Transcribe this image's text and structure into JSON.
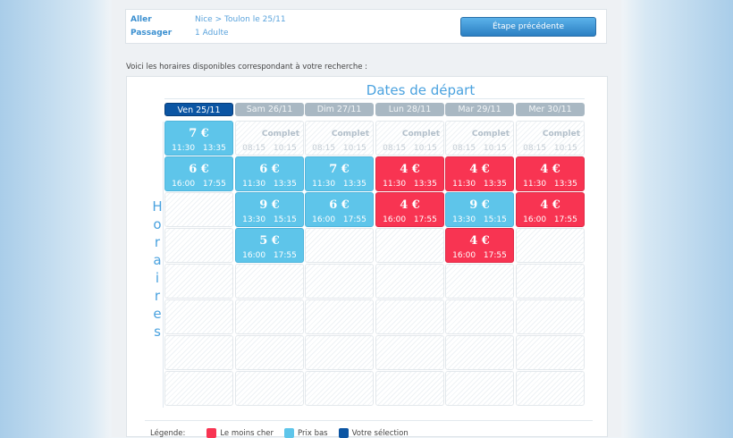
{
  "summary": {
    "aller_label": "Aller",
    "aller_value": "Nice > Toulon le 25/11",
    "passager_label": "Passager",
    "passager_value": "1 Adulte",
    "back_button": "Étape précédente"
  },
  "intro": "Voici les horaires disponibles correspondant à votre recherche :",
  "grid": {
    "title": "Dates de départ",
    "side_label": "Horaires",
    "days": [
      {
        "label": "Ven 25/11",
        "selected": true
      },
      {
        "label": "Sam 26/11"
      },
      {
        "label": "Dim 27/11"
      },
      {
        "label": "Lun 28/11"
      },
      {
        "label": "Mar 29/11"
      },
      {
        "label": "Mer 30/11"
      }
    ],
    "complet_label": "Complet",
    "rows": [
      [
        {
          "type": "low",
          "price": "7 €",
          "times": "11:30 13:35"
        },
        {
          "type": "full",
          "times": "08:15 10:15"
        },
        {
          "type": "full",
          "times": "08:15 10:15"
        },
        {
          "type": "full",
          "times": "08:15 10:15"
        },
        {
          "type": "full",
          "times": "08:15 10:15"
        },
        {
          "type": "full",
          "times": "08:15 10:15"
        }
      ],
      [
        {
          "type": "low",
          "price": "6 €",
          "times": "16:00 17:55"
        },
        {
          "type": "low",
          "price": "6 €",
          "times": "11:30 13:35"
        },
        {
          "type": "low",
          "price": "7 €",
          "times": "11:30 13:35"
        },
        {
          "type": "cheap",
          "price": "4 €",
          "times": "11:30 13:35"
        },
        {
          "type": "cheap",
          "price": "4 €",
          "times": "11:30 13:35"
        },
        {
          "type": "cheap",
          "price": "4 €",
          "times": "11:30 13:35"
        }
      ],
      [
        {
          "type": "empty"
        },
        {
          "type": "low",
          "price": "9 €",
          "times": "13:30 15:15"
        },
        {
          "type": "low",
          "price": "6 €",
          "times": "16:00 17:55"
        },
        {
          "type": "cheap",
          "price": "4 €",
          "times": "16:00 17:55"
        },
        {
          "type": "low",
          "price": "9 €",
          "times": "13:30 15:15"
        },
        {
          "type": "cheap",
          "price": "4 €",
          "times": "16:00 17:55"
        }
      ],
      [
        {
          "type": "empty"
        },
        {
          "type": "low",
          "price": "5 €",
          "times": "16:00 17:55"
        },
        {
          "type": "empty"
        },
        {
          "type": "empty"
        },
        {
          "type": "cheap",
          "price": "4 €",
          "times": "16:00 17:55"
        },
        {
          "type": "empty"
        }
      ],
      [
        {
          "type": "empty"
        },
        {
          "type": "empty"
        },
        {
          "type": "empty"
        },
        {
          "type": "empty"
        },
        {
          "type": "empty"
        },
        {
          "type": "empty"
        }
      ],
      [
        {
          "type": "empty"
        },
        {
          "type": "empty"
        },
        {
          "type": "empty"
        },
        {
          "type": "empty"
        },
        {
          "type": "empty"
        },
        {
          "type": "empty"
        }
      ],
      [
        {
          "type": "empty"
        },
        {
          "type": "empty"
        },
        {
          "type": "empty"
        },
        {
          "type": "empty"
        },
        {
          "type": "empty"
        },
        {
          "type": "empty"
        }
      ],
      [
        {
          "type": "empty"
        },
        {
          "type": "empty"
        },
        {
          "type": "empty"
        },
        {
          "type": "empty"
        },
        {
          "type": "empty"
        },
        {
          "type": "empty"
        }
      ]
    ]
  },
  "legend": {
    "label": "Légende:",
    "items": [
      {
        "label": "Le moins cher",
        "color": "#f83452"
      },
      {
        "label": "Prix bas",
        "color": "#5ec5ea"
      },
      {
        "label": "Votre sélection",
        "color": "#0b55a3"
      }
    ]
  }
}
